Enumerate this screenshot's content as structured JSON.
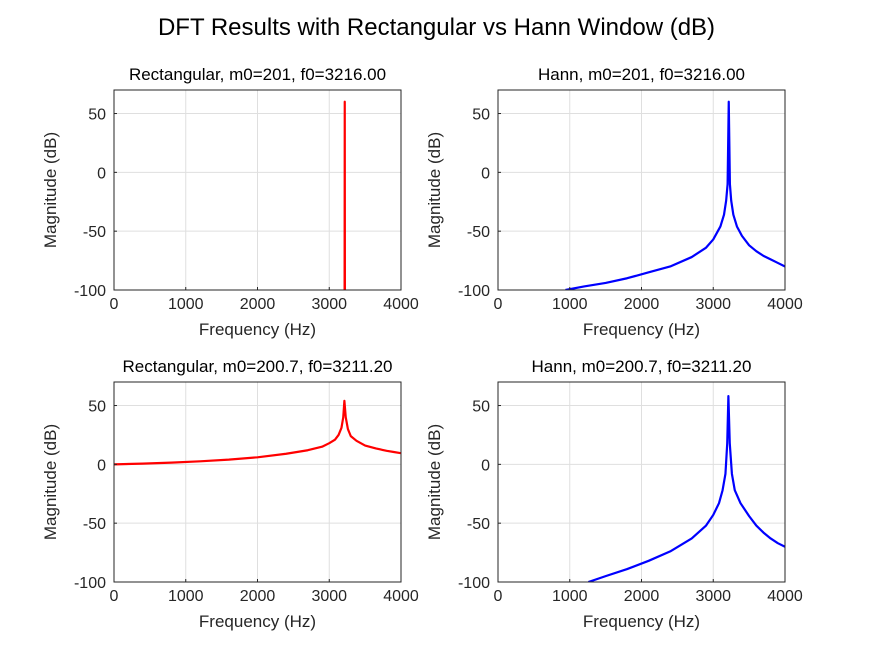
{
  "figure": {
    "title": "DFT Results with Rectangular vs Hann Window (dB)"
  },
  "chart_data": [
    {
      "type": "line",
      "title": "Rectangular, m0=201, f0=3216.00",
      "xlabel": "Frequency (Hz)",
      "ylabel": "Magnitude (dB)",
      "xlim": [
        0,
        4000
      ],
      "ylim": [
        -100,
        70
      ],
      "xticks": [
        0,
        1000,
        2000,
        3000,
        4000
      ],
      "yticks": [
        -100,
        -50,
        0,
        50
      ],
      "grid": true,
      "color": "#ff0000",
      "series": [
        {
          "x": [
            3200,
            3202,
            3204,
            3206,
            3208,
            3210,
            3212,
            3214,
            3216,
            3218,
            3220,
            3222,
            3224,
            3226,
            3228,
            3230,
            3232
          ],
          "y": [
            -100,
            -100,
            -100,
            -100,
            -100,
            -100,
            -100,
            -100,
            60,
            -100,
            -100,
            -100,
            -100,
            -100,
            -100,
            -100,
            -100
          ]
        }
      ]
    },
    {
      "type": "line",
      "title": "Hann, m0=201, f0=3216.00",
      "xlabel": "Frequency (Hz)",
      "ylabel": "Magnitude (dB)",
      "xlim": [
        0,
        4000
      ],
      "ylim": [
        -100,
        70
      ],
      "xticks": [
        0,
        1000,
        2000,
        3000,
        4000
      ],
      "yticks": [
        -100,
        -50,
        0,
        50
      ],
      "grid": true,
      "color": "#0000ff",
      "series": [
        {
          "x": [
            940,
            1200,
            1500,
            1800,
            2100,
            2400,
            2700,
            2900,
            3000,
            3100,
            3150,
            3180,
            3200,
            3216,
            3232,
            3250,
            3280,
            3330,
            3400,
            3500,
            3600,
            3700,
            3800,
            3900,
            4000
          ],
          "y": [
            -100,
            -97,
            -94,
            -90,
            -85,
            -80,
            -72,
            -64,
            -57,
            -46,
            -36,
            -24,
            -10,
            60,
            -10,
            -24,
            -36,
            -46,
            -54,
            -62,
            -67,
            -71,
            -74,
            -77,
            -80
          ]
        }
      ]
    },
    {
      "type": "line",
      "title": "Rectangular, m0=200.7, f0=3211.20",
      "xlabel": "Frequency (Hz)",
      "ylabel": "Magnitude (dB)",
      "xlim": [
        0,
        4000
      ],
      "ylim": [
        -100,
        70
      ],
      "xticks": [
        0,
        1000,
        2000,
        3000,
        4000
      ],
      "yticks": [
        -100,
        -50,
        0,
        50
      ],
      "grid": true,
      "color": "#ff0000",
      "series": [
        {
          "x": [
            0,
            400,
            800,
            1200,
            1600,
            2000,
            2400,
            2700,
            2900,
            3000,
            3080,
            3130,
            3170,
            3195,
            3211,
            3230,
            3260,
            3300,
            3380,
            3500,
            3650,
            3800,
            3900,
            4000
          ],
          "y": [
            0,
            0.6,
            1.5,
            2.6,
            4,
            6,
            9,
            12,
            15,
            18,
            21,
            25,
            31,
            40,
            54,
            40,
            30,
            24,
            20,
            16,
            13.5,
            11.5,
            10.5,
            9.5
          ]
        }
      ]
    },
    {
      "type": "line",
      "title": "Hann, m0=200.7, f0=3211.20",
      "xlabel": "Frequency (Hz)",
      "ylabel": "Magnitude (dB)",
      "xlim": [
        0,
        4000
      ],
      "ylim": [
        -100,
        70
      ],
      "xticks": [
        0,
        1000,
        2000,
        3000,
        4000
      ],
      "yticks": [
        -100,
        -50,
        0,
        50
      ],
      "grid": true,
      "color": "#0000ff",
      "series": [
        {
          "x": [
            1260,
            1500,
            1800,
            2100,
            2400,
            2700,
            2900,
            3000,
            3080,
            3130,
            3170,
            3195,
            3211,
            3230,
            3260,
            3300,
            3380,
            3500,
            3600,
            3700,
            3800,
            3900,
            4000
          ],
          "y": [
            -100,
            -95,
            -89,
            -82,
            -74,
            -63,
            -52,
            -43,
            -33,
            -22,
            -8,
            18,
            58,
            18,
            -8,
            -22,
            -33,
            -44,
            -52,
            -58,
            -63,
            -67,
            -70
          ]
        }
      ]
    }
  ]
}
